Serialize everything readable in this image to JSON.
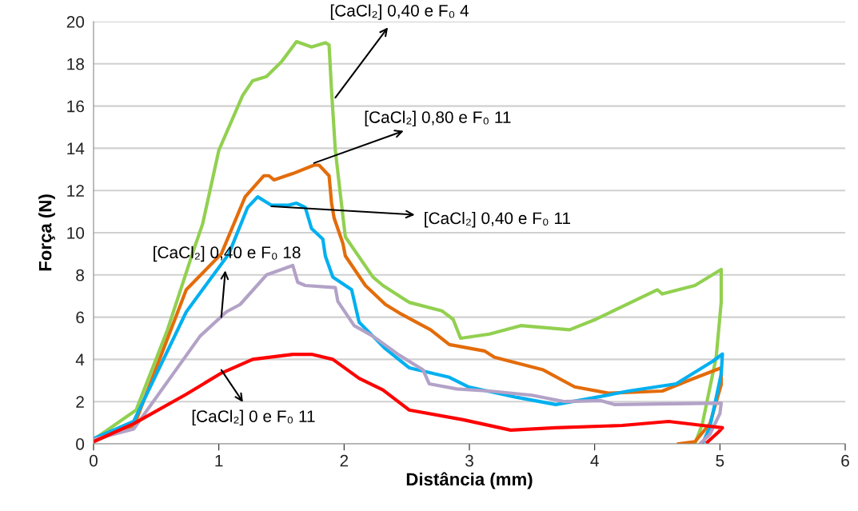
{
  "chart_data": {
    "type": "line",
    "xlabel": "Distância (mm)",
    "ylabel": "Força (N)",
    "xlim": [
      0,
      6
    ],
    "xticks": [
      0,
      1,
      2,
      3,
      4,
      5,
      6
    ],
    "ylim": [
      0,
      20
    ],
    "yticks": [
      0,
      2,
      4,
      6,
      8,
      10,
      12,
      14,
      16,
      18,
      20
    ],
    "grid": "y",
    "legend": false,
    "marker": "none",
    "line_style": "solid",
    "series": [
      {
        "color": "#92d050",
        "x": [
          0,
          0.34,
          0.59,
          0.8,
          0.87,
          1.0,
          1.19,
          1.27,
          1.38,
          1.5,
          1.62,
          1.74,
          1.85,
          1.88,
          1.9,
          1.93,
          1.99,
          2.01,
          2.23,
          2.31,
          2.52,
          2.78,
          2.87,
          2.93,
          3.16,
          3.41,
          3.8,
          4.01,
          4.22,
          4.5,
          4.54,
          4.8,
          5.01,
          5.01,
          4.97,
          4.86,
          4.8
        ],
        "values": [
          0.2,
          1.6,
          5.4,
          9.2,
          10.4,
          13.9,
          16.5,
          17.2,
          17.4,
          18.1,
          19.05,
          18.8,
          19.0,
          18.9,
          16.7,
          13.9,
          10.8,
          9.8,
          7.9,
          7.5,
          6.7,
          6.3,
          5.9,
          5.0,
          5.2,
          5.6,
          5.4,
          5.9,
          6.5,
          7.3,
          7.1,
          7.5,
          8.26,
          6.7,
          4.1,
          0.95,
          0
        ]
      },
      {
        "color": "#e36c0a",
        "x": [
          0,
          0.32,
          0.74,
          1.02,
          1.21,
          1.36,
          1.4,
          1.44,
          1.59,
          1.76,
          1.8,
          1.88,
          1.9,
          1.92,
          1.99,
          2.01,
          2.17,
          2.33,
          2.44,
          2.69,
          2.84,
          3.12,
          3.2,
          3.59,
          3.84,
          4.11,
          4.54,
          4.75,
          5.01,
          5.01,
          4.92,
          4.8,
          4.67
        ],
        "values": [
          0.15,
          0.8,
          7.3,
          9.0,
          11.7,
          12.7,
          12.7,
          12.5,
          12.8,
          13.2,
          13.2,
          12.7,
          11.4,
          10.7,
          9.5,
          8.9,
          7.5,
          6.6,
          6.2,
          5.4,
          4.7,
          4.4,
          4.1,
          3.5,
          2.7,
          2.4,
          2.5,
          3.0,
          3.6,
          2.8,
          0.95,
          0.1,
          0
        ]
      },
      {
        "color": "#00b0f0",
        "x": [
          0,
          0.32,
          0.74,
          1.08,
          1.23,
          1.31,
          1.42,
          1.55,
          1.62,
          1.69,
          1.74,
          1.83,
          1.85,
          1.91,
          2.06,
          2.12,
          2.23,
          2.33,
          2.52,
          2.84,
          2.99,
          3.38,
          3.69,
          4.01,
          4.27,
          4.65,
          4.94,
          5.02,
          5.01,
          4.92,
          4.86
        ],
        "values": [
          0.25,
          1.06,
          6.25,
          9.0,
          11.2,
          11.7,
          11.3,
          11.3,
          11.4,
          11.2,
          10.2,
          9.7,
          8.9,
          7.9,
          7.3,
          5.76,
          5.1,
          4.5,
          3.6,
          3.15,
          2.7,
          2.2,
          1.86,
          2.2,
          2.5,
          2.84,
          3.9,
          4.25,
          3.3,
          0.8,
          0
        ]
      },
      {
        "color": "#b3a2c7",
        "x": [
          0,
          0.32,
          0.85,
          1.06,
          1.17,
          1.38,
          1.59,
          1.63,
          1.69,
          1.93,
          1.95,
          2.08,
          2.23,
          2.44,
          2.63,
          2.68,
          2.9,
          3.16,
          3.5,
          3.76,
          4.05,
          4.16,
          5.01,
          5.0,
          4.92,
          4.84
        ],
        "values": [
          0.2,
          0.7,
          5.1,
          6.25,
          6.6,
          8.0,
          8.45,
          7.65,
          7.5,
          7.4,
          6.75,
          5.6,
          5.1,
          4.2,
          3.5,
          2.84,
          2.6,
          2.5,
          2.3,
          2.0,
          2.05,
          1.86,
          1.93,
          1.44,
          0.45,
          0
        ]
      },
      {
        "color": "#ff0000",
        "x": [
          0,
          0.32,
          0.74,
          1.02,
          1.27,
          1.59,
          1.74,
          1.91,
          2.12,
          2.31,
          2.52,
          2.95,
          3.33,
          3.69,
          4.22,
          4.59,
          4.86,
          5.02,
          4.99,
          4.9
        ],
        "values": [
          0.1,
          0.95,
          2.35,
          3.35,
          4.0,
          4.24,
          4.24,
          4.0,
          3.1,
          2.55,
          1.6,
          1.14,
          0.65,
          0.76,
          0.87,
          1.06,
          0.87,
          0.76,
          0.57,
          0.08
        ]
      }
    ],
    "annotations": [
      {
        "text": "[CaCl₂] 0,40 e F₀ 4",
        "x": 1.93,
        "y": 16.4
      },
      {
        "text": "[CaCl₂] 0,80 e F₀ 11",
        "x": 1.76,
        "y": 13.3
      },
      {
        "text": "[CaCl₂] 0,40 e F₀ 11",
        "x": 1.42,
        "y": 11.25
      },
      {
        "text": "[CaCl₂] 0,40 e F₀ 18",
        "x": 1.02,
        "y": 6.0
      },
      {
        "text": "[CaCl₂] 0 e F₀ 11",
        "x": 1.02,
        "y": 3.5
      }
    ]
  }
}
